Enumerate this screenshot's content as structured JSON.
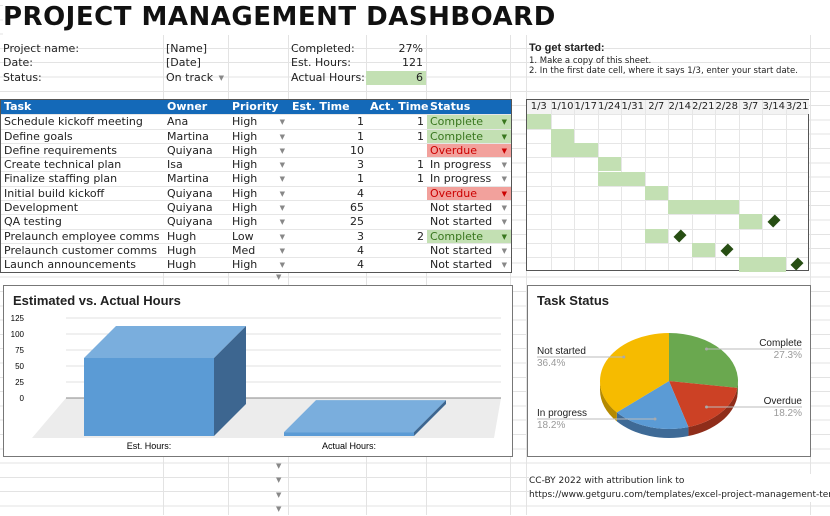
{
  "title": "PROJECT MANAGEMENT DASHBOARD",
  "info": {
    "project_label": "Project name:",
    "project_value": "[Name]",
    "date_label": "Date:",
    "date_value": "[Date]",
    "status_label": "Status:",
    "status_value": "On track",
    "completed_label": "Completed:",
    "completed_value": "27%",
    "est_label": "Est. Hours:",
    "est_value": "121",
    "actual_label": "Actual Hours:",
    "actual_value": "6"
  },
  "instructions": {
    "heading": "To get started:",
    "step1": "1. Make a copy of this sheet.",
    "step2": "2. In the first date cell, where it says 1/3, enter your start date."
  },
  "table": {
    "headers": [
      "Task",
      "Owner",
      "Priority",
      "Est. Time",
      "Act. Time",
      "Status"
    ],
    "rows": [
      {
        "task": "Schedule kickoff meeting",
        "owner": "Ana",
        "priority": "High",
        "est": "1",
        "act": "1",
        "status": "Complete"
      },
      {
        "task": "Define goals",
        "owner": "Martina",
        "priority": "High",
        "est": "1",
        "act": "1",
        "status": "Complete"
      },
      {
        "task": "Define requirements",
        "owner": "Quiyana",
        "priority": "High",
        "est": "10",
        "act": "",
        "status": "Overdue"
      },
      {
        "task": "Create technical plan",
        "owner": "Isa",
        "priority": "High",
        "est": "3",
        "act": "1",
        "status": "In progress"
      },
      {
        "task": "Finalize staffing plan",
        "owner": "Martina",
        "priority": "High",
        "est": "1",
        "act": "1",
        "status": "In progress"
      },
      {
        "task": "Initial build kickoff",
        "owner": "Quiyana",
        "priority": "High",
        "est": "4",
        "act": "",
        "status": "Overdue"
      },
      {
        "task": "Development",
        "owner": "Quiyana",
        "priority": "High",
        "est": "65",
        "act": "",
        "status": "Not started"
      },
      {
        "task": "QA testing",
        "owner": "Quiyana",
        "priority": "High",
        "est": "25",
        "act": "",
        "status": "Not started"
      },
      {
        "task": "Prelaunch employee comms",
        "owner": "Hugh",
        "priority": "Low",
        "est": "3",
        "act": "2",
        "status": "Complete"
      },
      {
        "task": "Prelaunch customer comms",
        "owner": "Hugh",
        "priority": "Med",
        "est": "4",
        "act": "",
        "status": "Not started"
      },
      {
        "task": "Launch announcements",
        "owner": "Hugh",
        "priority": "High",
        "est": "4",
        "act": "",
        "status": "Not started"
      }
    ]
  },
  "gantt": {
    "dates": [
      "1/3",
      "1/10",
      "1/17",
      "1/24",
      "1/31",
      "2/7",
      "2/14",
      "2/21",
      "2/28",
      "3/7",
      "3/14",
      "3/21"
    ],
    "rows": [
      {
        "weeks": [
          0
        ]
      },
      {
        "weeks": [
          1
        ]
      },
      {
        "weeks": [
          1,
          2
        ]
      },
      {
        "weeks": [
          3
        ]
      },
      {
        "weeks": [
          3,
          4
        ]
      },
      {
        "weeks": [
          5
        ]
      },
      {
        "weeks": [
          6,
          7,
          8
        ]
      },
      {
        "weeks": [
          9
        ],
        "milestone": 10
      },
      {
        "weeks": [
          5
        ],
        "milestone": 6
      },
      {
        "weeks": [
          7
        ],
        "milestone": 8
      },
      {
        "weeks": [
          9,
          10
        ],
        "milestone": 11
      }
    ],
    "bar_color": "#c3e0b3",
    "milestone_color": "#274e13"
  },
  "chart_data": [
    {
      "type": "bar",
      "title": "Estimated vs. Actual Hours",
      "categories": [
        "Est. Hours:",
        "Actual Hours:"
      ],
      "values": [
        121,
        6
      ],
      "ylim": [
        0,
        125
      ],
      "yticks": [
        "0",
        "25",
        "50",
        "75",
        "100",
        "125"
      ],
      "grid": true,
      "style": "3d",
      "color": "#5b9bd5"
    },
    {
      "type": "pie",
      "title": "Task Status",
      "style": "3d",
      "legend": "labels",
      "slices": [
        {
          "label": "Complete",
          "value": 27.3,
          "pct": "27.3%",
          "color": "#6aa84f"
        },
        {
          "label": "Overdue",
          "value": 18.2,
          "pct": "18.2%",
          "color": "#cc4125"
        },
        {
          "label": "In progress",
          "value": 18.2,
          "pct": "18.2%",
          "color": "#5b9bd5"
        },
        {
          "label": "Not started",
          "value": 36.4,
          "pct": "36.4%",
          "color": "#f6bb00"
        }
      ]
    }
  ],
  "credit": {
    "license": "CC-BY",
    "text": " 2022 with attribution link to",
    "url": "https://www.getguru.com/templates/excel-project-management-templates/"
  }
}
